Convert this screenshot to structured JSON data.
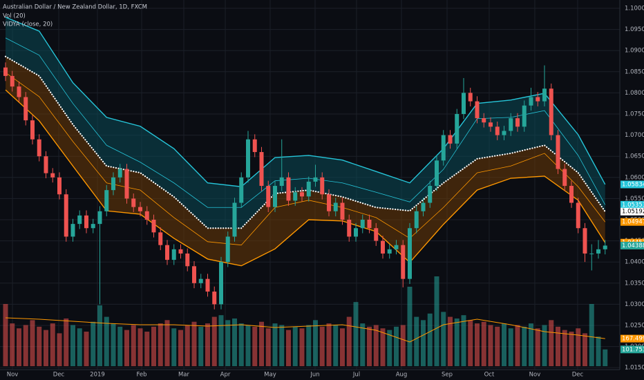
{
  "chart_data": {
    "type": "candlestick",
    "title": "Australian Dollar / New Zealand Dollar, 1D, FXCM",
    "indicator_labels": [
      "Vol (20)",
      "VIDYA (close, 20)"
    ],
    "xlim": [
      -0.82,
      91.18
    ],
    "xticks": [
      {
        "value": 1.03,
        "label": "Nov"
      },
      {
        "value": 7.9,
        "label": "Dec"
      },
      {
        "value": 13.64,
        "label": "2019"
      },
      {
        "value": 20.21,
        "label": "Feb"
      },
      {
        "value": 26.46,
        "label": "Mar"
      },
      {
        "value": 32.62,
        "label": "Apr"
      },
      {
        "value": 39.28,
        "label": "May"
      },
      {
        "value": 45.95,
        "label": "Jun"
      },
      {
        "value": 52.1,
        "label": "Jul"
      },
      {
        "value": 58.77,
        "label": "Aug"
      },
      {
        "value": 65.54,
        "label": "Sep"
      },
      {
        "value": 71.79,
        "label": "Oct"
      },
      {
        "value": 78.56,
        "label": "Nov"
      },
      {
        "value": 84.92,
        "label": "Dec"
      }
    ],
    "ylim": [
      1.10196,
      1.01454
    ],
    "yticks": [
      {
        "value": 1.1,
        "label": "1.10000"
      },
      {
        "value": 1.095,
        "label": "1.09500"
      },
      {
        "value": 1.09,
        "label": "1.09000"
      },
      {
        "value": 1.085,
        "label": "1.08500"
      },
      {
        "value": 1.08,
        "label": "1.08000"
      },
      {
        "value": 1.075,
        "label": "1.07500"
      },
      {
        "value": 1.07,
        "label": "1.07000"
      },
      {
        "value": 1.065,
        "label": "1.06500"
      },
      {
        "value": 1.06,
        "label": "1.06000"
      },
      {
        "value": 1.055,
        "label": "1.05500"
      },
      {
        "value": 1.05,
        "label": "1.05000"
      },
      {
        "value": 1.045,
        "label": "1.04500"
      },
      {
        "value": 1.04,
        "label": "1.04000"
      },
      {
        "value": 1.035,
        "label": "1.03500"
      },
      {
        "value": 1.03,
        "label": "1.03000"
      },
      {
        "value": 1.025,
        "label": "1.02500"
      },
      {
        "value": 1.02,
        "label": "1.02000"
      },
      {
        "value": 1.015,
        "label": "1.01500"
      }
    ],
    "y2lim": [
      0,
      2226000
    ],
    "grid": true,
    "up_color": "#26a69a",
    "down_color": "#ef5350",
    "ohlc": {
      "open": [
        1.086,
        1.084,
        1.0815,
        1.079,
        1.0735,
        1.069,
        1.065,
        1.061,
        1.06,
        1.056,
        1.046,
        1.049,
        1.051,
        1.048,
        1.049,
        1.052,
        1.057,
        1.06,
        1.062,
        1.055,
        1.053,
        1.052,
        1.05,
        1.047,
        1.044,
        1.0405,
        1.043,
        1.042,
        1.039,
        1.035,
        1.036,
        1.033,
        1.03,
        1.04,
        1.046,
        1.054,
        1.06,
        1.069,
        1.066,
        1.058,
        1.053,
        1.058,
        1.06,
        1.0545,
        1.0565,
        1.0555,
        1.059,
        1.06,
        1.056,
        1.052,
        1.054,
        1.05,
        1.046,
        1.048,
        1.05,
        1.048,
        1.045,
        1.042,
        1.043,
        1.044,
        1.036,
        1.048,
        1.052,
        1.054,
        1.058,
        1.064,
        1.07,
        1.068,
        1.075,
        1.08,
        1.078,
        1.074,
        1.073,
        1.072,
        1.07,
        1.071,
        1.074,
        1.072,
        1.077,
        1.079,
        1.078,
        1.081,
        1.07,
        1.062,
        1.058,
        1.054,
        1.048,
        1.042,
        1.042,
        1.043
      ],
      "high": [
        1.0872,
        1.0852,
        1.0827,
        1.0802,
        1.0747,
        1.0702,
        1.0662,
        1.0622,
        1.0612,
        1.0572,
        1.0502,
        1.0522,
        1.0522,
        1.0502,
        1.0532,
        1.0582,
        1.0612,
        1.0632,
        1.0632,
        1.0562,
        1.0542,
        1.0532,
        1.0512,
        1.0482,
        1.0452,
        1.0442,
        1.0442,
        1.0432,
        1.0402,
        1.0372,
        1.0372,
        1.0342,
        1.0412,
        1.0472,
        1.0552,
        1.0612,
        1.071,
        1.0702,
        1.0672,
        1.0592,
        1.0592,
        1.069,
        1.0612,
        1.0577,
        1.0577,
        1.0602,
        1.063,
        1.0612,
        1.0572,
        1.0552,
        1.0552,
        1.0512,
        1.0492,
        1.0512,
        1.0512,
        1.0492,
        1.0462,
        1.0442,
        1.0452,
        1.0452,
        1.0492,
        1.0532,
        1.0552,
        1.0592,
        1.0652,
        1.0712,
        1.0712,
        1.0762,
        1.0835,
        1.0812,
        1.0792,
        1.0752,
        1.0742,
        1.0732,
        1.0722,
        1.0752,
        1.0752,
        1.0782,
        1.0812,
        1.0802,
        1.0865,
        1.0822,
        1.0712,
        1.0632,
        1.0592,
        1.0552,
        1.0492,
        1.0442,
        1.0452,
        1.0452
      ],
      "low": [
        1.0828,
        1.0803,
        1.0778,
        1.0723,
        1.0678,
        1.0638,
        1.0598,
        1.0588,
        1.0548,
        1.0448,
        1.0448,
        1.0478,
        1.0468,
        1.0468,
        1.03,
        1.0508,
        1.0558,
        1.0588,
        1.0538,
        1.0518,
        1.0508,
        1.0488,
        1.0458,
        1.0428,
        1.0393,
        1.0393,
        1.0408,
        1.0378,
        1.0338,
        1.0338,
        1.0318,
        1.0288,
        1.0288,
        1.0388,
        1.0448,
        1.0528,
        1.0588,
        1.0648,
        1.0568,
        1.0518,
        1.0518,
        1.0568,
        1.0533,
        1.0533,
        1.0543,
        1.0543,
        1.0578,
        1.0548,
        1.0508,
        1.0508,
        1.0488,
        1.0448,
        1.0448,
        1.0468,
        1.0468,
        1.0438,
        1.0408,
        1.0408,
        1.0418,
        1.034,
        1.0348,
        1.0468,
        1.0508,
        1.0528,
        1.0568,
        1.0628,
        1.0668,
        1.0668,
        1.0738,
        1.0768,
        1.0728,
        1.0718,
        1.0708,
        1.0688,
        1.0688,
        1.0698,
        1.0708,
        1.0708,
        1.0758,
        1.0768,
        1.0768,
        1.0688,
        1.0608,
        1.0568,
        1.0528,
        1.0468,
        1.04,
        1.038,
        1.0408,
        1.0418
      ],
      "close": [
        1.084,
        1.0815,
        1.079,
        1.0735,
        1.069,
        1.065,
        1.061,
        1.06,
        1.056,
        1.046,
        1.049,
        1.051,
        1.048,
        1.049,
        1.052,
        1.057,
        1.06,
        1.062,
        1.055,
        1.053,
        1.052,
        1.05,
        1.047,
        1.044,
        1.0405,
        1.043,
        1.042,
        1.039,
        1.035,
        1.036,
        1.033,
        1.03,
        1.04,
        1.046,
        1.054,
        1.06,
        1.069,
        1.066,
        1.058,
        1.053,
        1.058,
        1.06,
        1.0545,
        1.0565,
        1.0555,
        1.059,
        1.06,
        1.056,
        1.052,
        1.054,
        1.05,
        1.046,
        1.048,
        1.05,
        1.048,
        1.045,
        1.042,
        1.043,
        1.044,
        1.036,
        1.048,
        1.052,
        1.054,
        1.058,
        1.064,
        1.07,
        1.068,
        1.075,
        1.08,
        1.078,
        1.074,
        1.073,
        1.072,
        1.07,
        1.071,
        1.074,
        1.072,
        1.077,
        1.079,
        1.078,
        1.081,
        1.07,
        1.062,
        1.058,
        1.054,
        1.048,
        1.042,
        1.042,
        1.043,
        1.04388
      ],
      "marker_color": "#26a69a"
    },
    "volume": {
      "values": [
        378000,
        260000,
        230000,
        250000,
        280000,
        240000,
        220000,
        260000,
        200000,
        290000,
        250000,
        230000,
        210000,
        270000,
        370000,
        300000,
        260000,
        240000,
        220000,
        250000,
        230000,
        210000,
        240000,
        260000,
        280000,
        230000,
        220000,
        250000,
        270000,
        240000,
        260000,
        300000,
        310000,
        280000,
        290000,
        260000,
        250000,
        240000,
        270000,
        230000,
        260000,
        250000,
        220000,
        240000,
        230000,
        250000,
        280000,
        240000,
        260000,
        250000,
        230000,
        300000,
        390000,
        260000,
        240000,
        250000,
        230000,
        220000,
        240000,
        250000,
        483000,
        300000,
        280000,
        320000,
        546000,
        330000,
        300000,
        290000,
        310000,
        280000,
        260000,
        270000,
        250000,
        240000,
        260000,
        230000,
        250000,
        240000,
        260000,
        230000,
        250000,
        280000,
        240000,
        220000,
        210000,
        230000,
        200000,
        378000,
        180000,
        101753
      ],
      "last_label": "101.753K",
      "marker_color": "#26a69a"
    },
    "band_x": [
      0,
      5,
      10,
      15,
      20,
      25,
      30,
      35,
      40,
      45,
      50,
      55,
      60,
      65,
      70,
      75,
      80,
      85,
      89
    ],
    "volume_ma": {
      "color": "#ff9800",
      "values": [
        294000,
        285600,
        273000,
        260400,
        252000,
        252000,
        243600,
        252000,
        235200,
        243600,
        252000,
        218400,
        147000,
        252000,
        285600,
        252000,
        210000,
        189000,
        167499
      ],
      "last_label": "167.499K"
    },
    "series": [
      {
        "color": "#26c6da",
        "width": 1.4,
        "values": [
          1.0979,
          1.0946,
          1.0824,
          1.0742,
          1.0721,
          1.0668,
          1.0587,
          1.0578,
          1.0647,
          1.0652,
          1.0641,
          1.0614,
          1.0587,
          1.0668,
          1.0775,
          1.0783,
          1.0799,
          1.0701,
          1.05834
        ]
      },
      {
        "color": "#26c6da",
        "width": 0.8,
        "values": [
          1.093,
          1.0889,
          1.0775,
          1.0676,
          1.0636,
          1.0587,
          1.0529,
          1.0529,
          1.0592,
          1.0598,
          1.0587,
          1.0565,
          1.0542,
          1.0619,
          1.0739,
          1.0742,
          1.0758,
          1.0652,
          1.05353
        ]
      },
      {
        "color": "#ffffff",
        "width": 2.2,
        "dotted": true,
        "values": [
          1.0886,
          1.084,
          1.0725,
          1.0627,
          1.0611,
          1.0554,
          1.048,
          1.048,
          1.0562,
          1.057,
          1.0554,
          1.0529,
          1.0521,
          1.0587,
          1.0644,
          1.0657,
          1.0676,
          1.0611,
          1.05192
        ]
      },
      {
        "color": "#ff9800",
        "width": 0.8,
        "values": [
          1.0848,
          1.0791,
          1.0685,
          1.0587,
          1.057,
          1.0505,
          1.0448,
          1.044,
          1.0529,
          1.0546,
          1.0529,
          1.0505,
          1.0456,
          1.0529,
          1.0611,
          1.0627,
          1.0657,
          1.0578,
          1.04947
        ]
      },
      {
        "color": "#ff9800",
        "width": 1.4,
        "values": [
          1.0807,
          1.0734,
          1.0627,
          1.0521,
          1.0513,
          1.0456,
          1.0407,
          1.0391,
          1.0431,
          1.05,
          1.0497,
          1.0472,
          1.0399,
          1.0489,
          1.057,
          1.0598,
          1.0603,
          1.0546,
          1.04457
        ]
      }
    ],
    "fills": [
      {
        "from": 0,
        "to": 2,
        "color": "#0b4a55"
      },
      {
        "from": 2,
        "to": 4,
        "color": "#6b3a08"
      }
    ]
  }
}
